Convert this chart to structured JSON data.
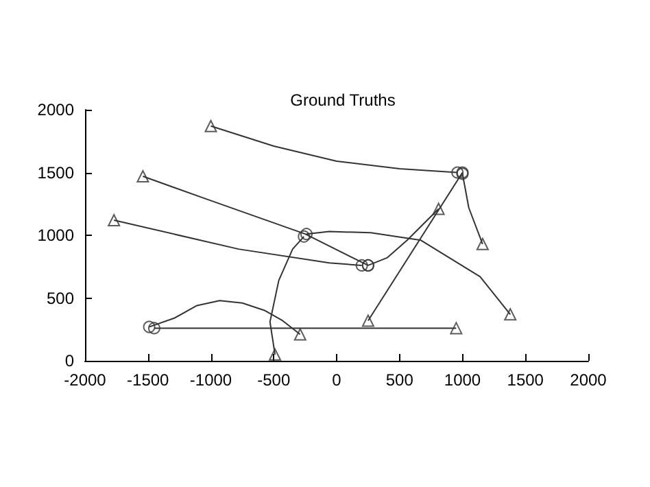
{
  "chart_data": {
    "type": "line",
    "title": "Ground Truths",
    "xlim": [
      -2000,
      2000
    ],
    "xticks": [
      -2000,
      -1500,
      -1000,
      -500,
      0,
      500,
      1000,
      1500,
      2000
    ],
    "ylim": [
      0,
      2000
    ],
    "yticks": [
      0,
      500,
      1000,
      1500,
      2000
    ],
    "series": [
      {
        "marker": "none",
        "color": "#333333",
        "x": [
          -1000,
          -500,
          0,
          500,
          960
        ],
        "values": [
          1870,
          1710,
          1590,
          1530,
          1500
        ]
      },
      {
        "marker": "none",
        "color": "#333333",
        "x": [
          -1540,
          -1040,
          -250,
          250
        ],
        "values": [
          1470,
          1290,
          1010,
          760
        ]
      },
      {
        "marker": "none",
        "color": "#333333",
        "x": [
          -1770,
          -780,
          -60,
          200
        ],
        "values": [
          1120,
          890,
          780,
          760
        ]
      },
      {
        "marker": "none",
        "color": "#333333",
        "x": [
          -490,
          -530,
          -460,
          -350,
          -260
        ],
        "values": [
          50,
          310,
          640,
          890,
          990
        ]
      },
      {
        "marker": "none",
        "color": "#333333",
        "x": [
          -290,
          -430,
          -570,
          -750,
          -930,
          -1110,
          -1290,
          -1490
        ],
        "values": [
          210,
          320,
          400,
          460,
          480,
          440,
          340,
          270
        ]
      },
      {
        "marker": "none",
        "color": "#333333",
        "x": [
          950,
          -1450
        ],
        "values": [
          260,
          260
        ]
      },
      {
        "marker": "none",
        "color": "#333333",
        "x": [
          1380,
          1140,
          670,
          270,
          -60,
          -240
        ],
        "values": [
          370,
          670,
          960,
          1020,
          1030,
          1010
        ]
      },
      {
        "marker": "none",
        "color": "#333333",
        "x": [
          250,
          1000
        ],
        "values": [
          320,
          1500
        ]
      },
      {
        "marker": "none",
        "color": "#333333",
        "x": [
          810,
          560,
          400,
          250
        ],
        "values": [
          1210,
          960,
          820,
          760
        ]
      },
      {
        "marker": "none",
        "color": "#333333",
        "x": [
          1160,
          1050,
          1000
        ],
        "values": [
          930,
          1220,
          1490
        ]
      },
      {
        "type": "scatter",
        "marker": "triangle",
        "color": "#333333",
        "x": [
          -1000,
          -1540,
          -1770,
          -490,
          -290,
          950,
          1380,
          250,
          810,
          1160
        ],
        "values": [
          1870,
          1470,
          1120,
          50,
          210,
          260,
          370,
          320,
          1210,
          930
        ]
      },
      {
        "type": "scatter",
        "marker": "circle",
        "color": "#333333",
        "x": [
          960,
          250,
          200,
          -260,
          -1490,
          -1450,
          -240,
          1000,
          250,
          1000
        ],
        "values": [
          1500,
          760,
          760,
          990,
          270,
          260,
          1010,
          1500,
          760,
          1490
        ]
      }
    ]
  }
}
